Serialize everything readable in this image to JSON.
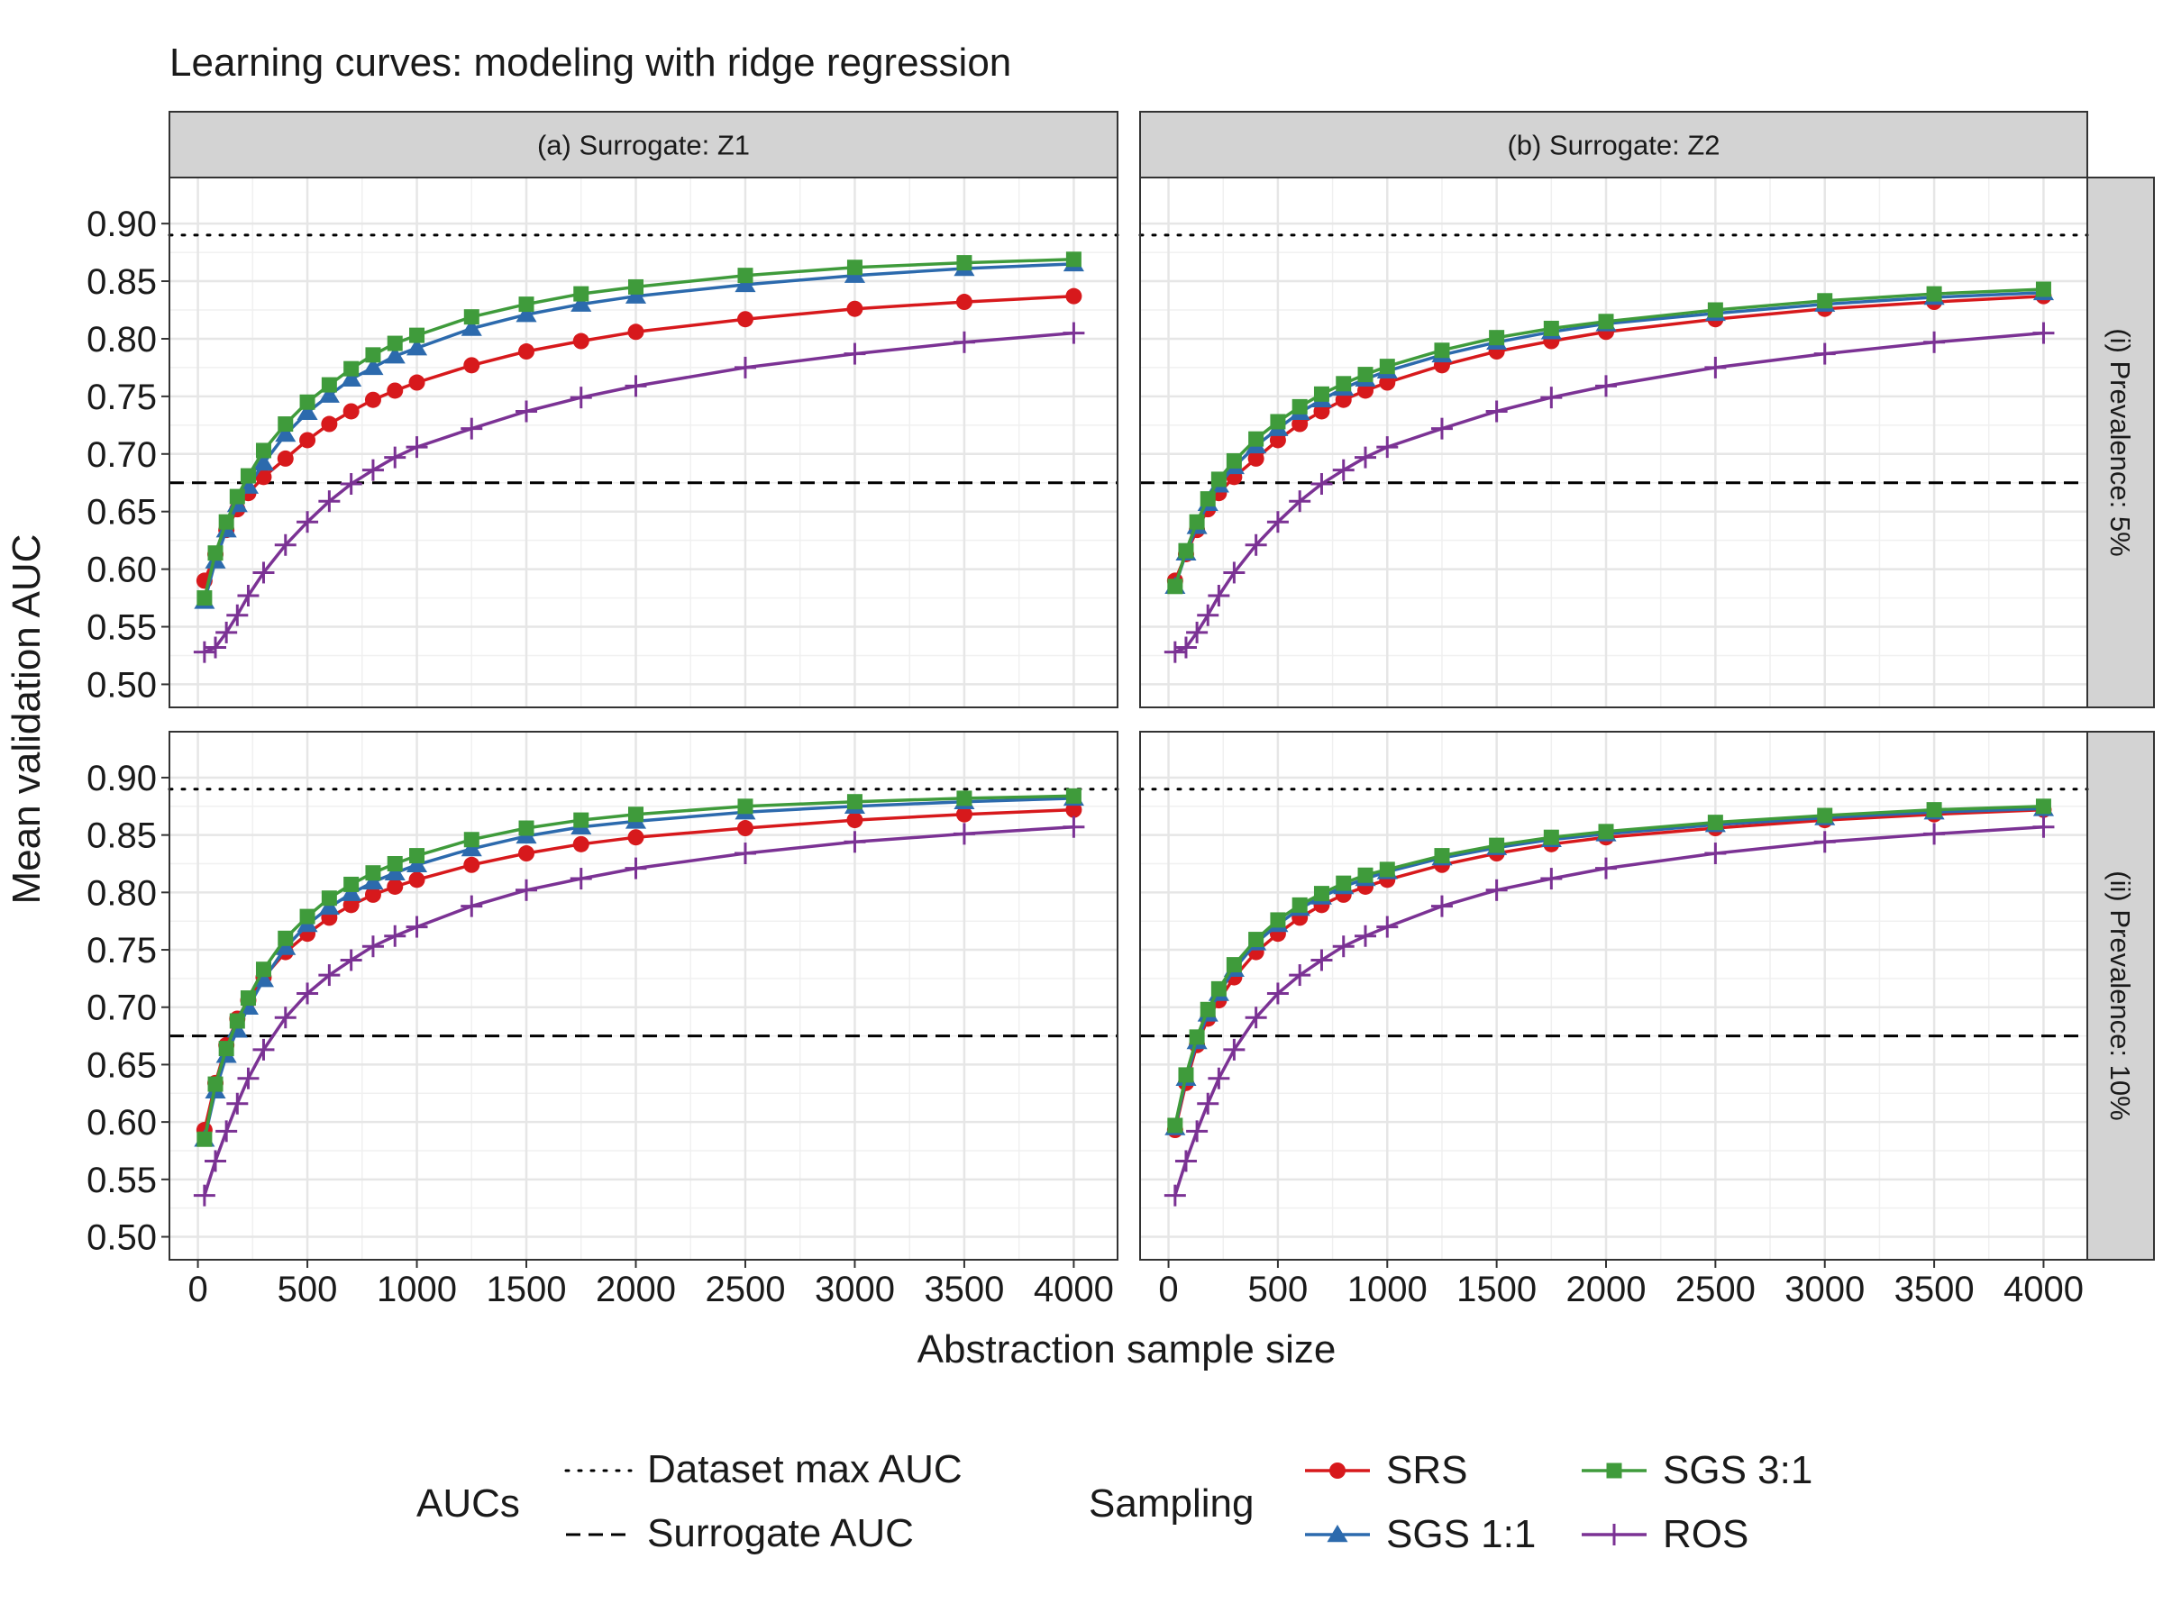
{
  "colors": {
    "SRS": "#d7191c",
    "SGS 1:1": "#2c6aad",
    "SGS 3:1": "#3f9b3b",
    "ROS": "#7b3294",
    "strip": "#d3d3d3",
    "grid": "#e6e6e6",
    "refline": "#000000"
  },
  "chart_data": {
    "type": "line",
    "title": "Learning curves: modeling with ridge regression",
    "xlabel": "Abstraction sample size",
    "ylabel": "Mean validation AUC",
    "xlim": [
      -130,
      4200
    ],
    "ylim": [
      0.48,
      0.94
    ],
    "x_ticks": [
      0,
      500,
      1000,
      1500,
      2000,
      2500,
      3000,
      3500,
      4000
    ],
    "y_ticks": [
      0.5,
      0.55,
      0.6,
      0.65,
      0.7,
      0.75,
      0.8,
      0.85,
      0.9
    ],
    "x_tick_labels": [
      "0",
      "500",
      "1000",
      "1500",
      "2000",
      "2500",
      "3000",
      "3500",
      "4000"
    ],
    "y_tick_labels": [
      "0.50",
      "0.55",
      "0.60",
      "0.65",
      "0.70",
      "0.75",
      "0.80",
      "0.85",
      "0.90"
    ],
    "columns": [
      "(a) Surrogate: Z1",
      "(b) Surrogate: Z2"
    ],
    "rows": [
      "(i) Prevalence: 5%",
      "(ii) Prevalence: 10%"
    ],
    "reference_lines": {
      "dataset_max_auc": 0.89,
      "surrogate_auc": 0.675
    },
    "x": [
      30,
      80,
      130,
      180,
      230,
      300,
      400,
      500,
      600,
      700,
      800,
      900,
      1000,
      1250,
      1500,
      1750,
      2000,
      2500,
      3000,
      3500,
      4000
    ],
    "legend": {
      "aucs_title": "AUCs",
      "aucs_items": [
        "Dataset max AUC",
        "Surrogate AUC"
      ],
      "sampling_title": "Sampling",
      "sampling_items": [
        "SRS",
        "SGS 1:1",
        "SGS 3:1",
        "ROS"
      ]
    },
    "panels": [
      {
        "column": "(a) Surrogate: Z1",
        "row": "(i) Prevalence: 5%",
        "series": [
          {
            "name": "SRS",
            "values": [
              0.59,
              0.613,
              0.634,
              0.652,
              0.666,
              0.68,
              0.696,
              0.712,
              0.726,
              0.737,
              0.747,
              0.755,
              0.762,
              0.777,
              0.789,
              0.798,
              0.806,
              0.817,
              0.826,
              0.832,
              0.837
            ]
          },
          {
            "name": "SGS 1:1",
            "values": [
              0.572,
              0.607,
              0.634,
              0.656,
              0.672,
              0.692,
              0.717,
              0.736,
              0.751,
              0.765,
              0.775,
              0.785,
              0.792,
              0.809,
              0.821,
              0.83,
              0.837,
              0.847,
              0.855,
              0.861,
              0.865
            ]
          },
          {
            "name": "SGS 3:1",
            "values": [
              0.575,
              0.614,
              0.641,
              0.663,
              0.681,
              0.703,
              0.726,
              0.745,
              0.76,
              0.774,
              0.786,
              0.796,
              0.803,
              0.819,
              0.83,
              0.839,
              0.845,
              0.855,
              0.862,
              0.866,
              0.869
            ]
          },
          {
            "name": "ROS",
            "values": [
              0.528,
              0.532,
              0.545,
              0.56,
              0.577,
              0.597,
              0.621,
              0.641,
              0.659,
              0.674,
              0.686,
              0.697,
              0.706,
              0.722,
              0.737,
              0.749,
              0.759,
              0.775,
              0.787,
              0.797,
              0.805
            ]
          }
        ]
      },
      {
        "column": "(b) Surrogate: Z2",
        "row": "(i) Prevalence: 5%",
        "series": [
          {
            "name": "SRS",
            "values": [
              0.59,
              0.613,
              0.634,
              0.652,
              0.666,
              0.68,
              0.696,
              0.712,
              0.726,
              0.737,
              0.747,
              0.755,
              0.762,
              0.777,
              0.789,
              0.798,
              0.806,
              0.817,
              0.826,
              0.832,
              0.837
            ]
          },
          {
            "name": "SGS 1:1",
            "values": [
              0.585,
              0.614,
              0.637,
              0.657,
              0.673,
              0.689,
              0.707,
              0.722,
              0.736,
              0.747,
              0.757,
              0.765,
              0.772,
              0.786,
              0.797,
              0.806,
              0.813,
              0.822,
              0.83,
              0.836,
              0.84
            ]
          },
          {
            "name": "SGS 3:1",
            "values": [
              0.585,
              0.616,
              0.641,
              0.661,
              0.678,
              0.694,
              0.713,
              0.728,
              0.741,
              0.752,
              0.761,
              0.769,
              0.776,
              0.79,
              0.801,
              0.809,
              0.815,
              0.825,
              0.833,
              0.839,
              0.843
            ]
          },
          {
            "name": "ROS",
            "values": [
              0.528,
              0.532,
              0.545,
              0.56,
              0.577,
              0.597,
              0.621,
              0.641,
              0.659,
              0.674,
              0.686,
              0.697,
              0.706,
              0.722,
              0.737,
              0.749,
              0.759,
              0.775,
              0.787,
              0.797,
              0.805
            ]
          }
        ]
      },
      {
        "column": "(a) Surrogate: Z1",
        "row": "(ii) Prevalence: 10%",
        "series": [
          {
            "name": "SRS",
            "values": [
              0.593,
              0.634,
              0.667,
              0.69,
              0.706,
              0.726,
              0.748,
              0.764,
              0.778,
              0.789,
              0.798,
              0.805,
              0.811,
              0.824,
              0.834,
              0.842,
              0.848,
              0.856,
              0.863,
              0.868,
              0.872
            ]
          },
          {
            "name": "SGS 1:1",
            "values": [
              0.585,
              0.627,
              0.658,
              0.68,
              0.7,
              0.724,
              0.752,
              0.772,
              0.787,
              0.799,
              0.809,
              0.817,
              0.824,
              0.838,
              0.849,
              0.857,
              0.862,
              0.87,
              0.875,
              0.879,
              0.882
            ]
          },
          {
            "name": "SGS 3:1",
            "values": [
              0.585,
              0.633,
              0.664,
              0.688,
              0.708,
              0.733,
              0.76,
              0.779,
              0.795,
              0.807,
              0.817,
              0.825,
              0.832,
              0.846,
              0.856,
              0.863,
              0.868,
              0.875,
              0.879,
              0.882,
              0.884
            ]
          },
          {
            "name": "ROS",
            "values": [
              0.536,
              0.566,
              0.592,
              0.616,
              0.638,
              0.663,
              0.691,
              0.712,
              0.728,
              0.741,
              0.753,
              0.762,
              0.77,
              0.788,
              0.802,
              0.812,
              0.821,
              0.834,
              0.844,
              0.851,
              0.857
            ]
          }
        ]
      },
      {
        "column": "(b) Surrogate: Z2",
        "row": "(ii) Prevalence: 10%",
        "series": [
          {
            "name": "SRS",
            "values": [
              0.593,
              0.634,
              0.667,
              0.69,
              0.706,
              0.726,
              0.748,
              0.764,
              0.778,
              0.789,
              0.798,
              0.805,
              0.811,
              0.824,
              0.834,
              0.842,
              0.848,
              0.856,
              0.863,
              0.868,
              0.872
            ]
          },
          {
            "name": "SGS 1:1",
            "values": [
              0.595,
              0.638,
              0.67,
              0.694,
              0.712,
              0.733,
              0.756,
              0.772,
              0.786,
              0.796,
              0.805,
              0.812,
              0.818,
              0.83,
              0.839,
              0.846,
              0.851,
              0.859,
              0.865,
              0.87,
              0.873
            ]
          },
          {
            "name": "SGS 3:1",
            "values": [
              0.597,
              0.641,
              0.674,
              0.698,
              0.716,
              0.737,
              0.759,
              0.776,
              0.789,
              0.799,
              0.808,
              0.815,
              0.82,
              0.832,
              0.841,
              0.848,
              0.853,
              0.861,
              0.867,
              0.872,
              0.875
            ]
          },
          {
            "name": "ROS",
            "values": [
              0.536,
              0.566,
              0.592,
              0.616,
              0.638,
              0.663,
              0.691,
              0.712,
              0.728,
              0.741,
              0.753,
              0.762,
              0.77,
              0.788,
              0.802,
              0.812,
              0.821,
              0.834,
              0.844,
              0.851,
              0.857
            ]
          }
        ]
      }
    ]
  }
}
